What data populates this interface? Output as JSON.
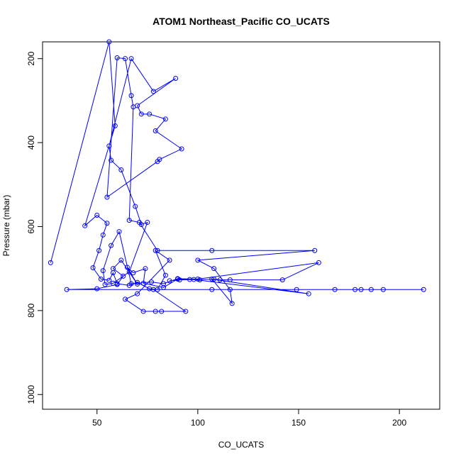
{
  "chart_data": {
    "type": "line",
    "title": "ATOM1 Northeast_Pacific CO_UCATS",
    "xlabel": "CO_UCATS",
    "ylabel": "Pressure (mbar)",
    "xlim": [
      23,
      220
    ],
    "ylim": [
      1035,
      160
    ],
    "y_reversed": true,
    "xticks": [
      "50",
      "100",
      "150",
      "200"
    ],
    "yticks": [
      "200",
      "400",
      "600",
      "800",
      "1000"
    ],
    "grid": false,
    "series": [
      {
        "color": "#0000ff",
        "marker": "open-circle",
        "points": [
          [
            27,
            686
          ],
          [
            56,
            160
          ],
          [
            59,
            360
          ],
          [
            44,
            598
          ],
          [
            50,
            573
          ],
          [
            55,
            592
          ],
          [
            53,
            620
          ],
          [
            51,
            657
          ],
          [
            48,
            698
          ],
          [
            52,
            725
          ],
          [
            56,
            728
          ],
          [
            58,
            710
          ],
          [
            60,
            736
          ],
          [
            66,
            740
          ],
          [
            70,
            733
          ],
          [
            76,
            748
          ],
          [
            80,
            750
          ],
          [
            84,
            716
          ],
          [
            79,
            657
          ],
          [
            86,
            680
          ],
          [
            70,
            760
          ],
          [
            64,
            773
          ],
          [
            73,
            802
          ],
          [
            79,
            802
          ],
          [
            82,
            802
          ],
          [
            94,
            802
          ],
          [
            78,
            750
          ],
          [
            107,
            750
          ],
          [
            149,
            750
          ],
          [
            168,
            750
          ],
          [
            178,
            750
          ],
          [
            181,
            750
          ],
          [
            186,
            750
          ],
          [
            192,
            750
          ],
          [
            212,
            750
          ],
          [
            35,
            750
          ],
          [
            50,
            748
          ],
          [
            60,
            738
          ],
          [
            63,
            718
          ],
          [
            58,
            700
          ],
          [
            62,
            680
          ],
          [
            70,
            737
          ],
          [
            65,
            697
          ],
          [
            68,
            710
          ],
          [
            74,
            700
          ],
          [
            73,
            735
          ],
          [
            83,
            745
          ],
          [
            90,
            725
          ],
          [
            96,
            726
          ],
          [
            101,
            727
          ],
          [
            108,
            725
          ],
          [
            111,
            727
          ],
          [
            116,
            727
          ],
          [
            142,
            727
          ],
          [
            160,
            686
          ],
          [
            100,
            725
          ],
          [
            90,
            724
          ],
          [
            83,
            736
          ],
          [
            77,
            732
          ],
          [
            67,
            736
          ],
          [
            61,
            612
          ],
          [
            57,
            645
          ],
          [
            53,
            705
          ],
          [
            54,
            738
          ],
          [
            58,
            735
          ],
          [
            66,
            708
          ],
          [
            75,
            590
          ],
          [
            72,
            595
          ],
          [
            69,
            552
          ],
          [
            62,
            465
          ],
          [
            57,
            442
          ],
          [
            56,
            408
          ],
          [
            67,
            200
          ],
          [
            78,
            278
          ],
          [
            89,
            247
          ],
          [
            70,
            312
          ],
          [
            72,
            332
          ],
          [
            76,
            332
          ],
          [
            84,
            344
          ],
          [
            79,
            372
          ],
          [
            92,
            415
          ],
          [
            81,
            440
          ],
          [
            80,
            445
          ],
          [
            55,
            530
          ],
          [
            60,
            198
          ],
          [
            64,
            200
          ],
          [
            67,
            288
          ],
          [
            68,
            315
          ],
          [
            66,
            585
          ],
          [
            71,
            590
          ],
          [
            80,
            657
          ],
          [
            107,
            657
          ],
          [
            158,
            657
          ],
          [
            100,
            680
          ],
          [
            108,
            700
          ],
          [
            116,
            750
          ],
          [
            117,
            783
          ],
          [
            107,
            725
          ],
          [
            155,
            760
          ],
          [
            98,
            726
          ],
          [
            91,
            727
          ],
          [
            86,
            729
          ]
        ]
      }
    ]
  }
}
